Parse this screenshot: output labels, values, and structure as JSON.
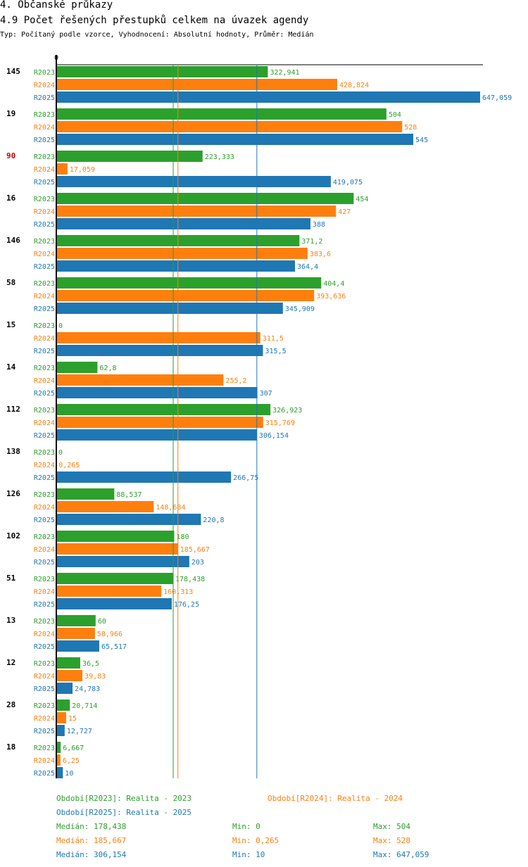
{
  "header": {
    "section": "4. Občanské průkazy",
    "title": "4.9 Počet řešených přestupků celkem na úvazek agendy",
    "subtitle": "Typ: Počítaný podle vzorce, Vyhodnocení: Absolutní hodnoty, Průměr: Medián"
  },
  "colors": {
    "R2023": "#2ca02c",
    "R2024": "#ff7f0e",
    "R2025": "#1f77b4",
    "highlight": "#cc0000"
  },
  "chart_data": {
    "type": "bar",
    "orientation": "horizontal",
    "axis_zero_label": "0",
    "xlim": [
      0,
      647.059
    ],
    "series_names": [
      "R2023",
      "R2024",
      "R2025"
    ],
    "groups": [
      {
        "label": "145",
        "highlight": false,
        "values": [
          322.941,
          428.824,
          647.059
        ],
        "labels": [
          "322,941",
          "428,824",
          "647,059"
        ]
      },
      {
        "label": "19",
        "highlight": false,
        "values": [
          504,
          528,
          545
        ],
        "labels": [
          "504",
          "528",
          "545"
        ]
      },
      {
        "label": "90",
        "highlight": true,
        "values": [
          223.333,
          17.059,
          419.075
        ],
        "labels": [
          "223,333",
          "17,059",
          "419,075"
        ]
      },
      {
        "label": "16",
        "highlight": false,
        "values": [
          454,
          427,
          388
        ],
        "labels": [
          "454",
          "427",
          "388"
        ]
      },
      {
        "label": "146",
        "highlight": false,
        "values": [
          371.2,
          383.6,
          364.4
        ],
        "labels": [
          "371,2",
          "383,6",
          "364,4"
        ]
      },
      {
        "label": "58",
        "highlight": false,
        "values": [
          404.4,
          393.636,
          345.909
        ],
        "labels": [
          "404,4",
          "393,636",
          "345,909"
        ]
      },
      {
        "label": "15",
        "highlight": false,
        "values": [
          0,
          311.5,
          315.5
        ],
        "labels": [
          "0",
          "311,5",
          "315,5"
        ]
      },
      {
        "label": "14",
        "highlight": false,
        "values": [
          62.8,
          255.2,
          307
        ],
        "labels": [
          "62,8",
          "255,2",
          "307"
        ]
      },
      {
        "label": "112",
        "highlight": false,
        "values": [
          326.923,
          315.769,
          306.154
        ],
        "labels": [
          "326,923",
          "315,769",
          "306,154"
        ]
      },
      {
        "label": "138",
        "highlight": false,
        "values": [
          0,
          0.265,
          266.75
        ],
        "labels": [
          "0",
          "0,265",
          "266,75"
        ]
      },
      {
        "label": "126",
        "highlight": false,
        "values": [
          88.537,
          148.684,
          220.8
        ],
        "labels": [
          "88,537",
          "148,684",
          "220,8"
        ]
      },
      {
        "label": "102",
        "highlight": false,
        "values": [
          180,
          185.667,
          203
        ],
        "labels": [
          "180",
          "185,667",
          "203"
        ]
      },
      {
        "label": "51",
        "highlight": false,
        "values": [
          178.438,
          160.313,
          176.25
        ],
        "labels": [
          "178,438",
          "160,313",
          "176,25"
        ]
      },
      {
        "label": "13",
        "highlight": false,
        "values": [
          60,
          58.966,
          65.517
        ],
        "labels": [
          "60",
          "58,966",
          "65,517"
        ]
      },
      {
        "label": "12",
        "highlight": false,
        "values": [
          36.5,
          39.83,
          24.783
        ],
        "labels": [
          "36,5",
          "39,83",
          "24,783"
        ]
      },
      {
        "label": "28",
        "highlight": false,
        "values": [
          20.714,
          15,
          12.727
        ],
        "labels": [
          "20,714",
          "15",
          "12,727"
        ]
      },
      {
        "label": "18",
        "highlight": false,
        "values": [
          6.667,
          6.25,
          10
        ],
        "labels": [
          "6,667",
          "6,25",
          "10"
        ]
      }
    ],
    "median_lines": [
      178.438,
      185.667,
      306.154
    ]
  },
  "legend": {
    "periods": [
      "Období[R2023]: Realita - 2023",
      "Období[R2024]: Realita - 2024",
      "Období[R2025]: Realita - 2025"
    ],
    "stats": [
      {
        "median": "Medián: 178,438",
        "min": "Min: 0",
        "max": "Max: 504"
      },
      {
        "median": "Medián: 185,667",
        "min": "Min: 0,265",
        "max": "Max: 528"
      },
      {
        "median": "Medián: 306,154",
        "min": "Min: 10",
        "max": "Max: 647,059"
      }
    ]
  }
}
